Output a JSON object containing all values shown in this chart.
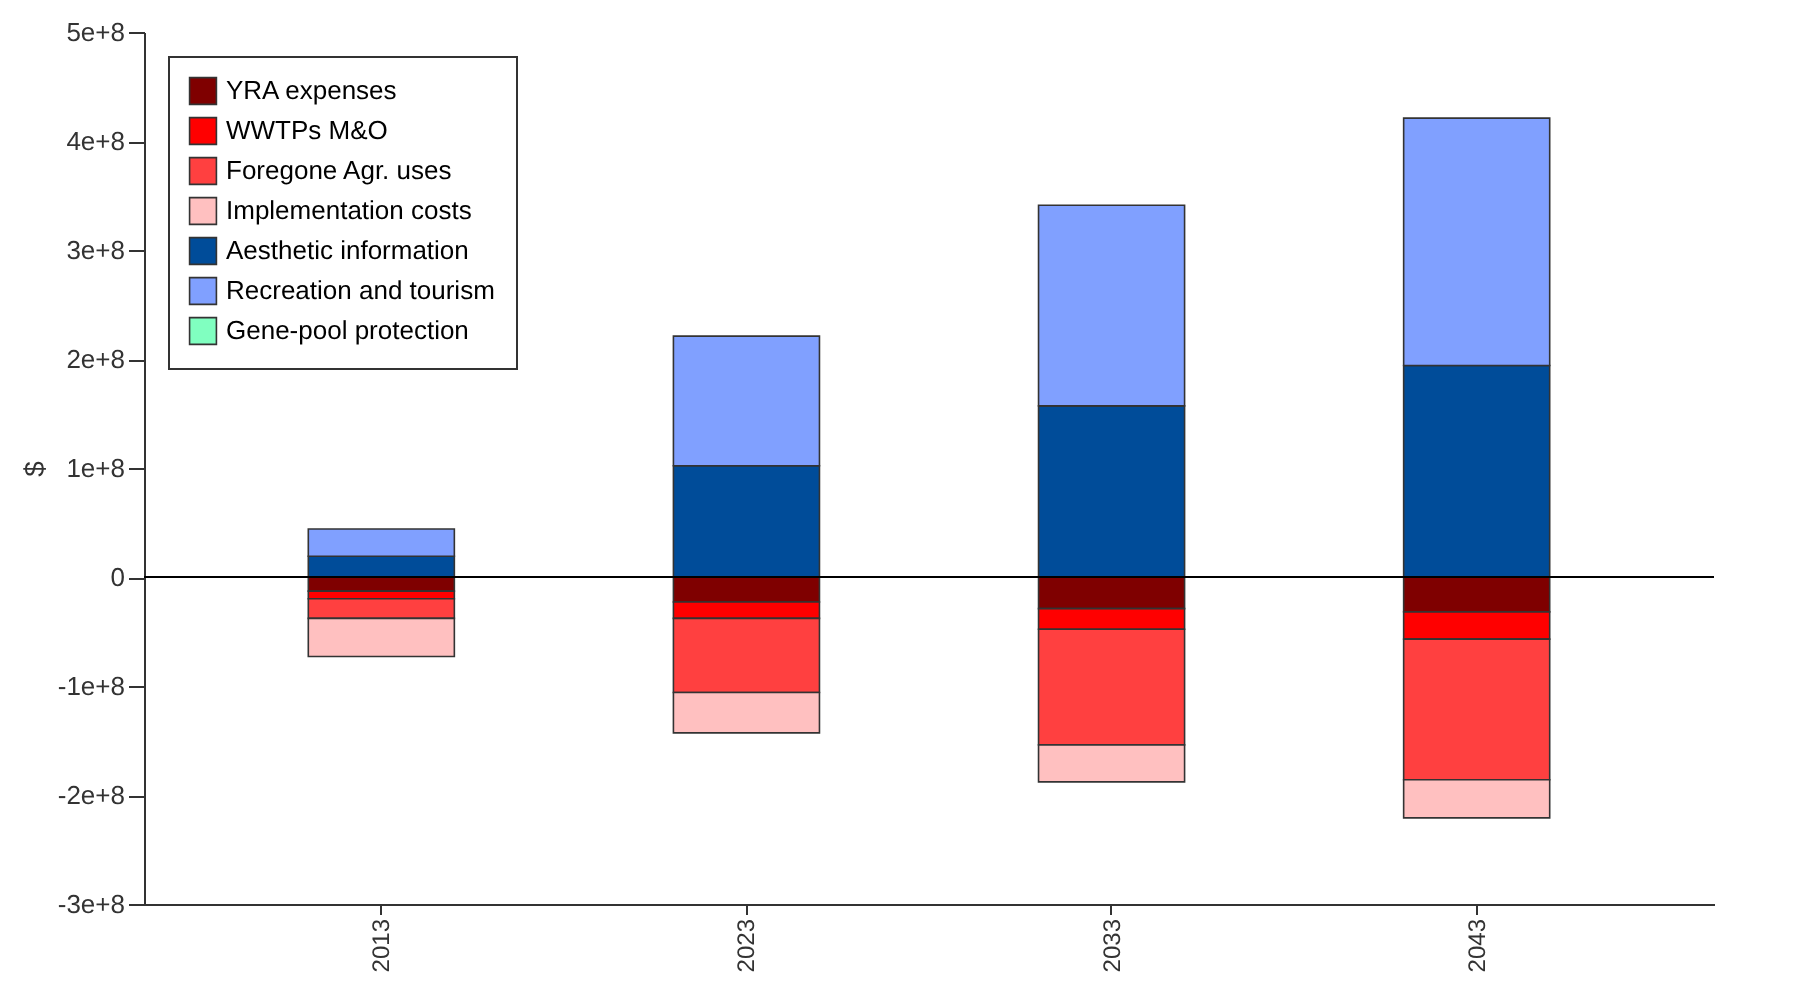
{
  "chart_data": {
    "type": "bar",
    "stacked": true,
    "ylabel": "$",
    "categories": [
      "2013",
      "2023",
      "2033",
      "2043"
    ],
    "series": [
      {
        "name": "YRA expenses",
        "color": "#7f0000",
        "values": [
          -13000000,
          -23000000,
          -29000000,
          -32000000
        ]
      },
      {
        "name": "WWTPs M&O",
        "color": "#ff0000",
        "values": [
          -7000000,
          -15000000,
          -19000000,
          -25000000
        ]
      },
      {
        "name": "Foregone Agr. uses",
        "color": "#ff4040",
        "values": [
          -18000000,
          -68000000,
          -106000000,
          -129000000
        ]
      },
      {
        "name": "Implementation costs",
        "color": "#ffc0c0",
        "values": [
          -35000000,
          -37000000,
          -34000000,
          -35000000
        ]
      },
      {
        "name": "Aesthetic information",
        "color": "#004c99",
        "values": [
          19000000,
          102000000,
          157000000,
          194000000
        ]
      },
      {
        "name": "Recreation and tourism",
        "color": "#80a0ff",
        "values": [
          25000000,
          119000000,
          184000000,
          227000000
        ]
      },
      {
        "name": "Gene-pool protection",
        "color": "#80ffc0",
        "values": [
          null,
          null,
          null,
          null
        ]
      }
    ],
    "ylim": [
      -300000000,
      500000000
    ],
    "yticks": [
      {
        "value": -300000000,
        "label": "-3e+8"
      },
      {
        "value": -200000000,
        "label": "-2e+8"
      },
      {
        "value": -100000000,
        "label": "-1e+8"
      },
      0,
      {
        "value": 100000000,
        "label": "1e+8"
      },
      {
        "value": 200000000,
        "label": "2e+8"
      },
      {
        "value": 300000000,
        "label": "3e+8"
      },
      {
        "value": 400000000,
        "label": "4e+8"
      },
      {
        "value": 500000000,
        "label": "5e+8"
      }
    ],
    "ref_lines": [
      {
        "axis": "y",
        "value": 0
      }
    ],
    "grid": false,
    "legend": "top left"
  }
}
